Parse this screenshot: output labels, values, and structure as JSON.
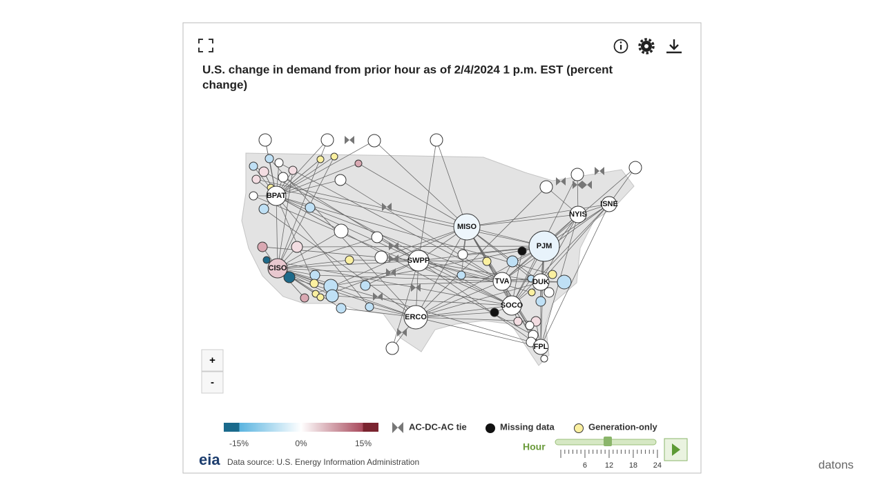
{
  "title": "U.S. change in demand from prior hour as of 2/4/2024 1 p.m. EST (percent change)",
  "title_lines": [
    "U.S. change in demand from prior hour as of 2/4/2024 1 p.m. EST (percent",
    "change)"
  ],
  "regions": [
    "BPAT",
    "CISO",
    "MISO",
    "SWPP",
    "PJM",
    "NYIS",
    "ISNE",
    "TVA",
    "DUK",
    "SOCO",
    "ERCO",
    "FPL"
  ],
  "zoom": {
    "in": "+",
    "out": "-"
  },
  "legend": {
    "scale_labels": [
      "-15%",
      "0%",
      "15%"
    ],
    "tie": "AC-DC-AC tie",
    "missing": "Missing data",
    "generation_only": "Generation-only"
  },
  "logo": "eia",
  "source": "Data source: U.S. Energy Information Administration",
  "hour": {
    "label": "Hour",
    "ticks": [
      "6",
      "12",
      "18",
      "24"
    ]
  },
  "watermark": "datons"
}
